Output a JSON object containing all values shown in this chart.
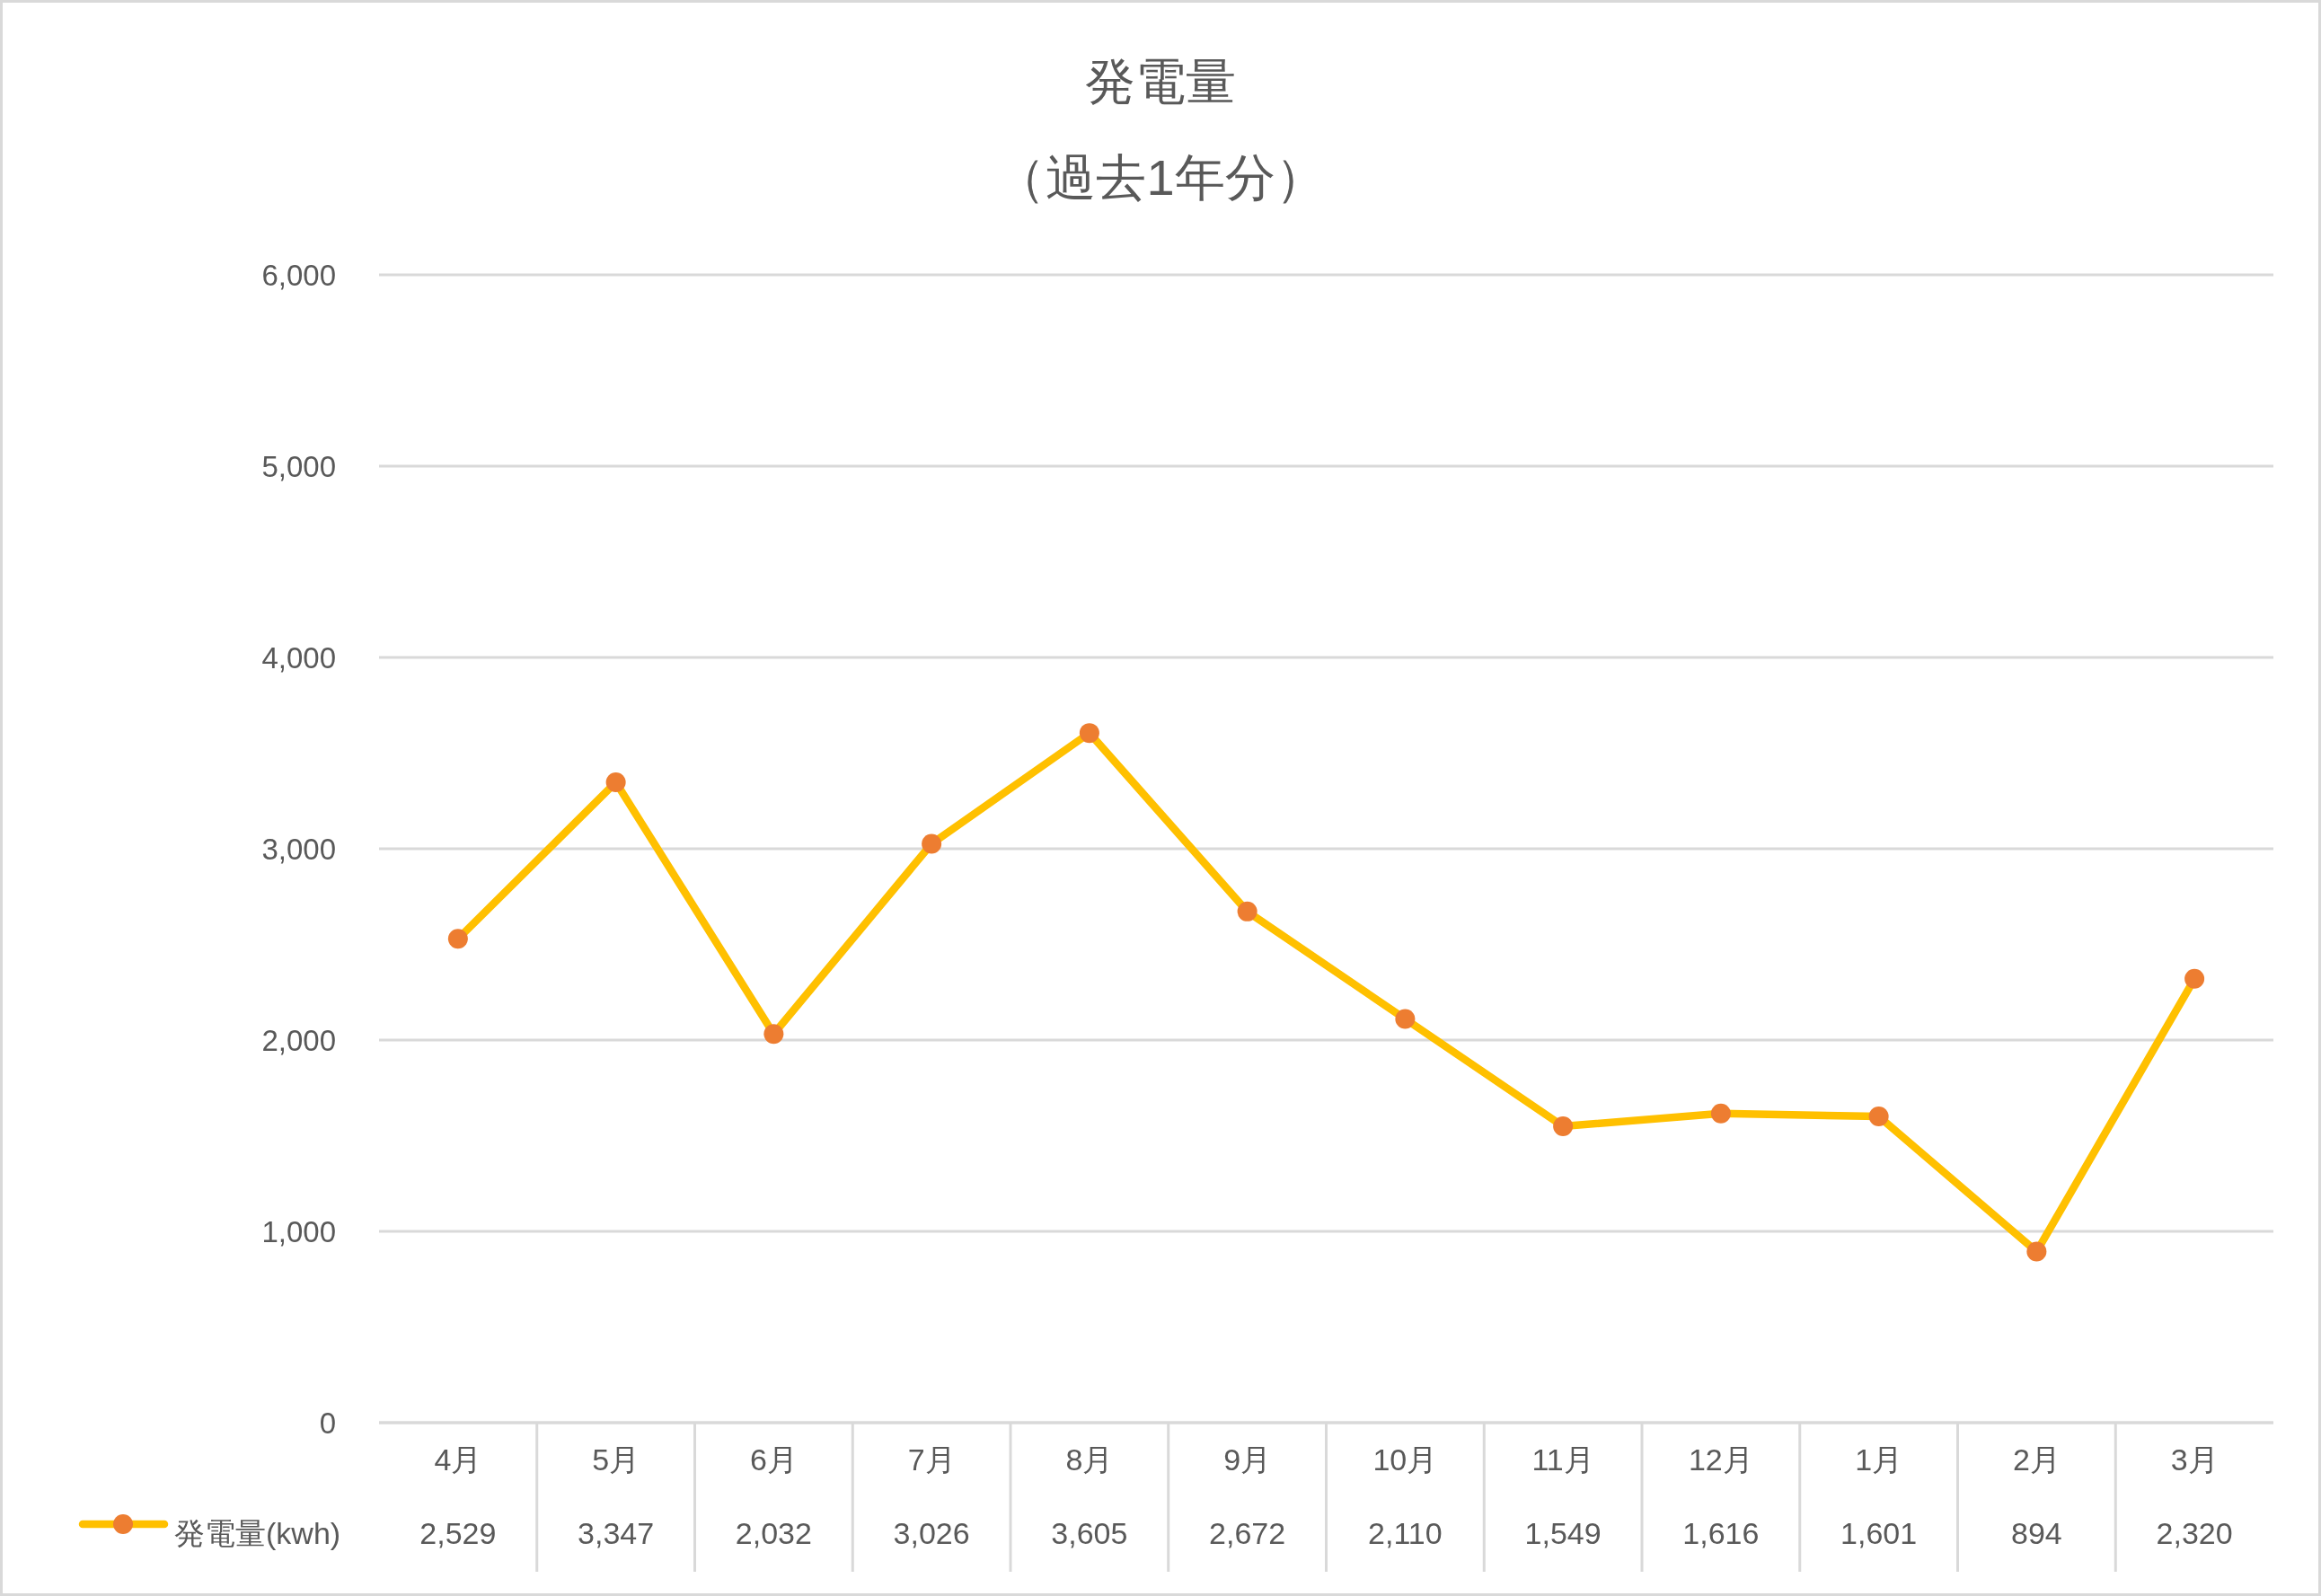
{
  "chart_data": {
    "type": "line",
    "title": "発電量",
    "subtitle": "（過去1年分）",
    "categories": [
      "4月",
      "5月",
      "6月",
      "7月",
      "8月",
      "9月",
      "10月",
      "11月",
      "12月",
      "1月",
      "2月",
      "3月"
    ],
    "series": [
      {
        "name": "発電量(kwh)",
        "color": "#ffc000",
        "colors": [
          "#ed7d31",
          "#ed7d31",
          "#ed7d31",
          "#ed7d31",
          "#ed7d31",
          "#ed7d31",
          "#ed7d31",
          "#ed7d31",
          "#ed7d31",
          "#ed7d31",
          "#ed7d31",
          "#ed7d31"
        ],
        "values": [
          2529,
          3347,
          2032,
          3026,
          3605,
          2672,
          2110,
          1549,
          1616,
          1601,
          894,
          2320
        ],
        "value_labels": [
          "2,529",
          "3,347",
          "2,032",
          "3,026",
          "3,605",
          "2,672",
          "2,110",
          "1,549",
          "1,616",
          "1,601",
          "894",
          "2,320"
        ]
      }
    ],
    "ylim": [
      0,
      6000
    ],
    "yticks": [
      0,
      {
        "value": 1000,
        "label": "1,000"
      },
      {
        "value": 2000,
        "label": "2,000"
      },
      {
        "value": 3000,
        "label": "3,000"
      },
      {
        "value": 4000,
        "label": "4,000"
      },
      {
        "value": 5000,
        "label": "5,000"
      },
      {
        "value": 6000,
        "label": "6,000"
      }
    ],
    "grid": "y",
    "legend": "bottom left",
    "marker": "circle",
    "line_style": "solid"
  }
}
